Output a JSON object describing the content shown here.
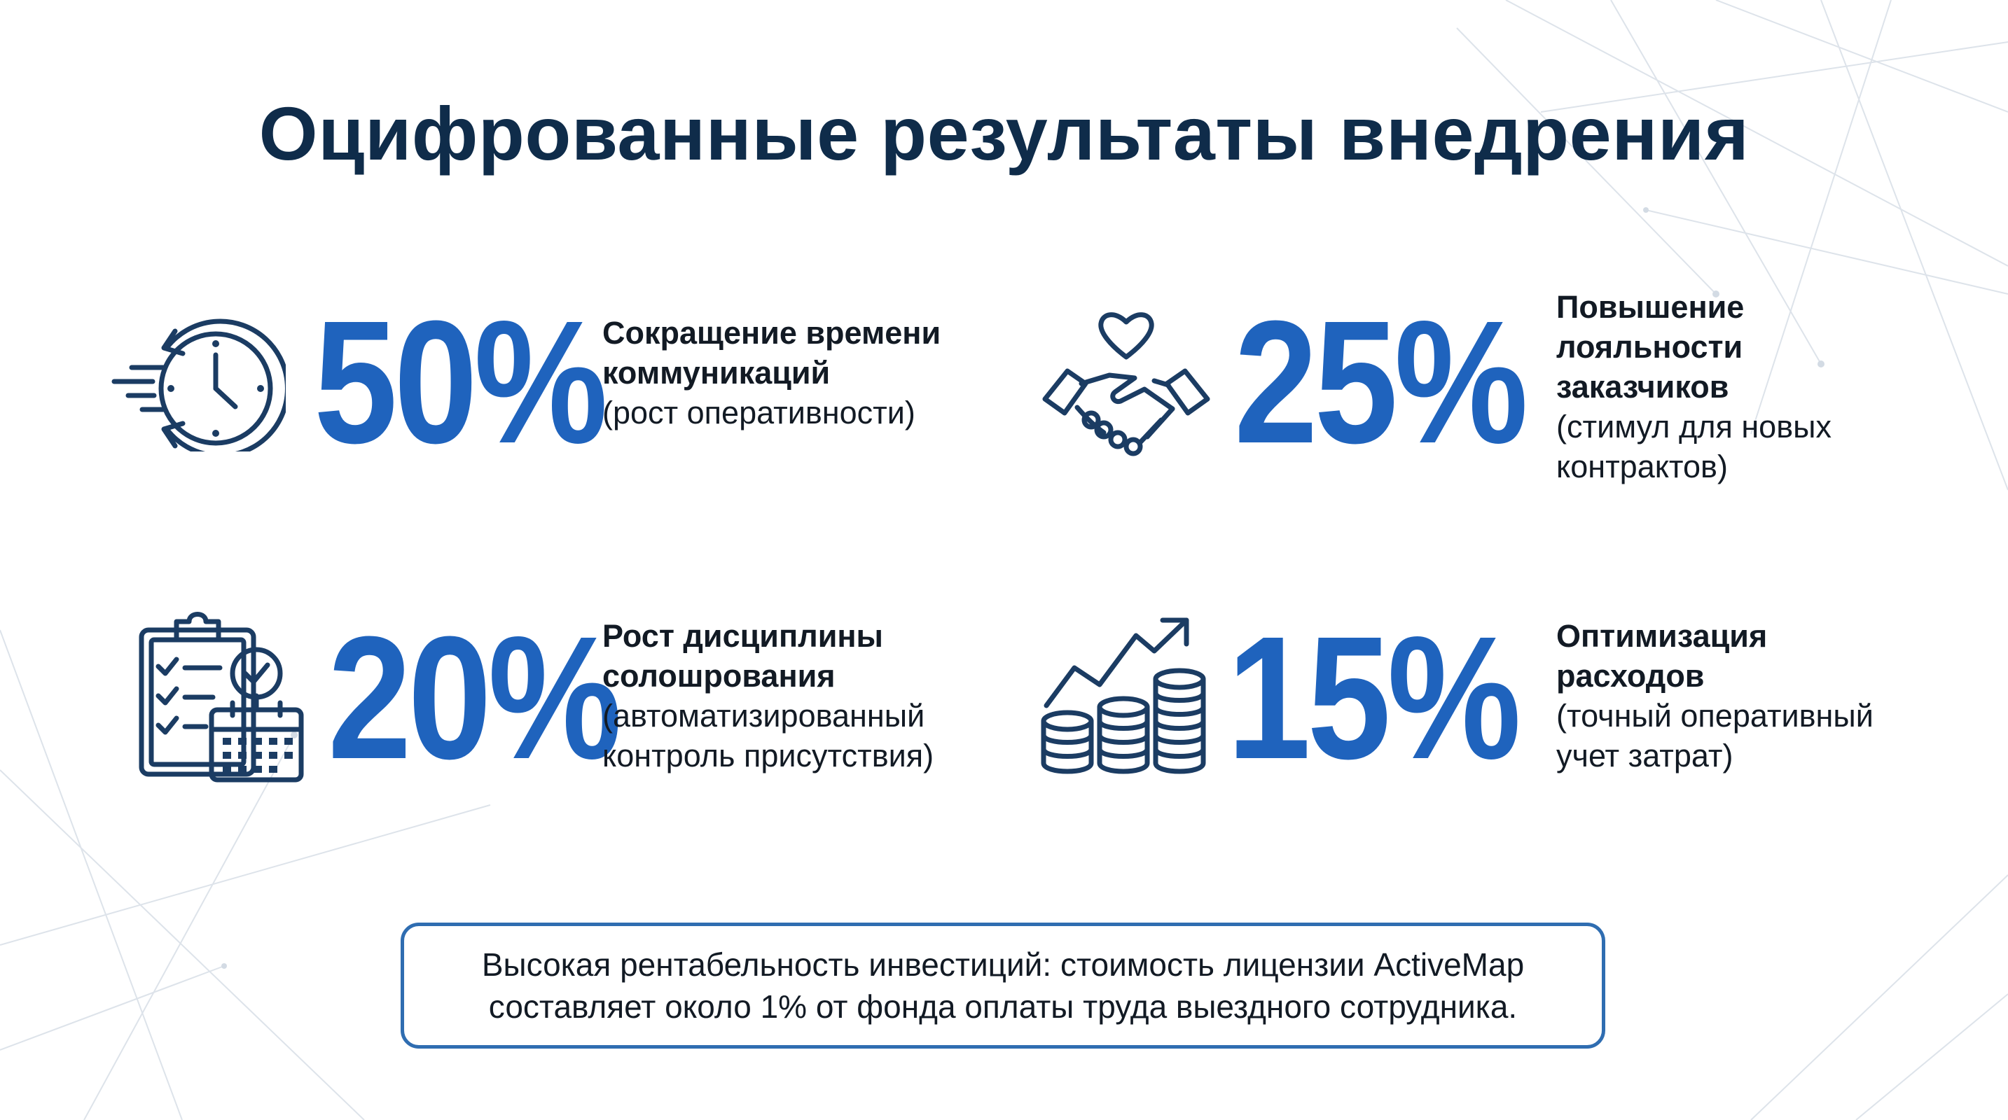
{
  "slide": {
    "title": "Оцифрованные результаты внедрения"
  },
  "stats": [
    {
      "value": "50%",
      "headline": [
        "Сокращение времени",
        "коммуникаций"
      ],
      "detail": [
        "(рост оперативности)"
      ],
      "icon": "clock-speed-icon"
    },
    {
      "value": "25%",
      "headline": [
        "Повышение",
        "лояльности",
        "заказчиков"
      ],
      "detail": [
        "(стимул для новых",
        "контрактов)"
      ],
      "icon": "handshake-heart-icon"
    },
    {
      "value": "20%",
      "headline": [
        "Рост дисциплины",
        "солошрования"
      ],
      "detail": [
        "(автоматизированный",
        "контроль присутствия)"
      ],
      "icon": "clipboard-calendar-icon"
    },
    {
      "value": "15%",
      "headline": [
        "Оптимизация",
        "расходов"
      ],
      "detail": [
        "(точный оперативный",
        "учет затрат)"
      ],
      "icon": "coins-growth-icon"
    }
  ],
  "roi": {
    "line1": "Высокая рентабельность инвестиций: стоимость лицензии ActiveMap",
    "line2": "составляет около 1% от фонда оплаты труда выездного сотрудника."
  },
  "colors": {
    "accent": "#1f63bd",
    "title": "#0f2c4a",
    "icon": "#1b3c63",
    "border": "#2f6db1"
  }
}
